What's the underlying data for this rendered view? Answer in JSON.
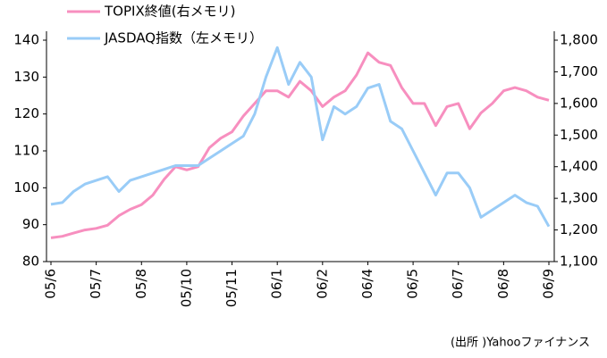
{
  "chart_data": {
    "type": "line",
    "categories": [
      "05/6",
      null,
      null,
      null,
      "05/7",
      null,
      null,
      null,
      "05/8",
      null,
      null,
      null,
      "05/10",
      null,
      null,
      null,
      "05/11",
      null,
      null,
      null,
      "06/1",
      null,
      null,
      null,
      "06/2",
      null,
      null,
      null,
      "06/4",
      null,
      null,
      null,
      "06/5",
      null,
      null,
      null,
      "06/7",
      null,
      null,
      null,
      "06/8",
      null,
      null,
      null,
      "06/9"
    ],
    "series": [
      {
        "name": "TOPIX終値(右メモリ)",
        "color": "#f78fbf",
        "axis": "y2",
        "values": [
          1175,
          1180,
          1190,
          1200,
          1205,
          1215,
          1245,
          1265,
          1280,
          1310,
          1360,
          1400,
          1390,
          1400,
          1460,
          1490,
          1510,
          1560,
          1600,
          1640,
          1640,
          1620,
          1670,
          1640,
          1590,
          1620,
          1640,
          1690,
          1760,
          1730,
          1720,
          1650,
          1600,
          1600,
          1530,
          1590,
          1600,
          1520,
          1570,
          1600,
          1640,
          1650,
          1640,
          1620,
          1610
        ]
      },
      {
        "name": "JASDAQ指数（左メモリ）",
        "color": "#99ccf7",
        "values": [
          95.5,
          96,
          99,
          101,
          102,
          103,
          99,
          102,
          103,
          104,
          105,
          106,
          106,
          106,
          108,
          110,
          112,
          114,
          120,
          130,
          138,
          128,
          134,
          130,
          113,
          122,
          120,
          122,
          127,
          128,
          118,
          116,
          110,
          104,
          98,
          104,
          104,
          100,
          92,
          94,
          96,
          98,
          96,
          95,
          89.5
        ]
      }
    ],
    "ylim": [
      80,
      140
    ],
    "yticks": [
      80,
      90,
      100,
      110,
      120,
      130,
      140
    ],
    "y2lim": [
      1100,
      1800
    ],
    "y2ticks": [
      {
        "value": 1100,
        "label": "1,100"
      },
      {
        "value": 1200,
        "label": "1,200"
      },
      {
        "value": 1300,
        "label": "1,300"
      },
      {
        "value": 1400,
        "label": "1,400"
      },
      {
        "value": 1500,
        "label": "1,500"
      },
      {
        "value": 1600,
        "label": "1,600"
      },
      {
        "value": 1700,
        "label": "1,700"
      },
      {
        "value": 1800,
        "label": "1,800"
      }
    ],
    "source": "(出所 )Yahooファイナンス"
  }
}
